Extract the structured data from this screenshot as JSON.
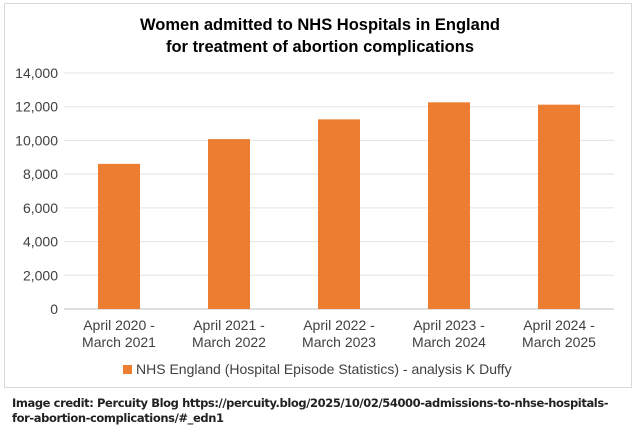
{
  "chart_data": {
    "type": "bar",
    "title": [
      "Women admitted to NHS Hospitals in England",
      "for treatment of abortion complications"
    ],
    "categories": [
      [
        "April 2020 -",
        "March 2021"
      ],
      [
        "April 2021 -",
        "March 2022"
      ],
      [
        "April 2022 -",
        "March 2023"
      ],
      [
        "April 2023 -",
        "March 2024"
      ],
      [
        "April 2024 -",
        "March 2025"
      ]
    ],
    "series": [
      {
        "name": "NHS England (Hospital Episode Statistics) - analysis K Duffy",
        "values": [
          8610,
          10080,
          11250,
          12260,
          12120
        ],
        "color": "#ed7d31"
      }
    ],
    "ylim": [
      0,
      14000
    ],
    "yticks": [
      "0",
      "2,000",
      "4,000",
      "6,000",
      "8,000",
      "10,000",
      "12,000",
      "14,000"
    ],
    "grid": true,
    "legend": "bottom",
    "xlabel": "",
    "ylabel": ""
  },
  "credit": "Image credit: Percuity Blog https://percuity.blog/2025/10/02/54000-admissions-to-nhse-hospitals-for-abortion-complications/#_edn1"
}
